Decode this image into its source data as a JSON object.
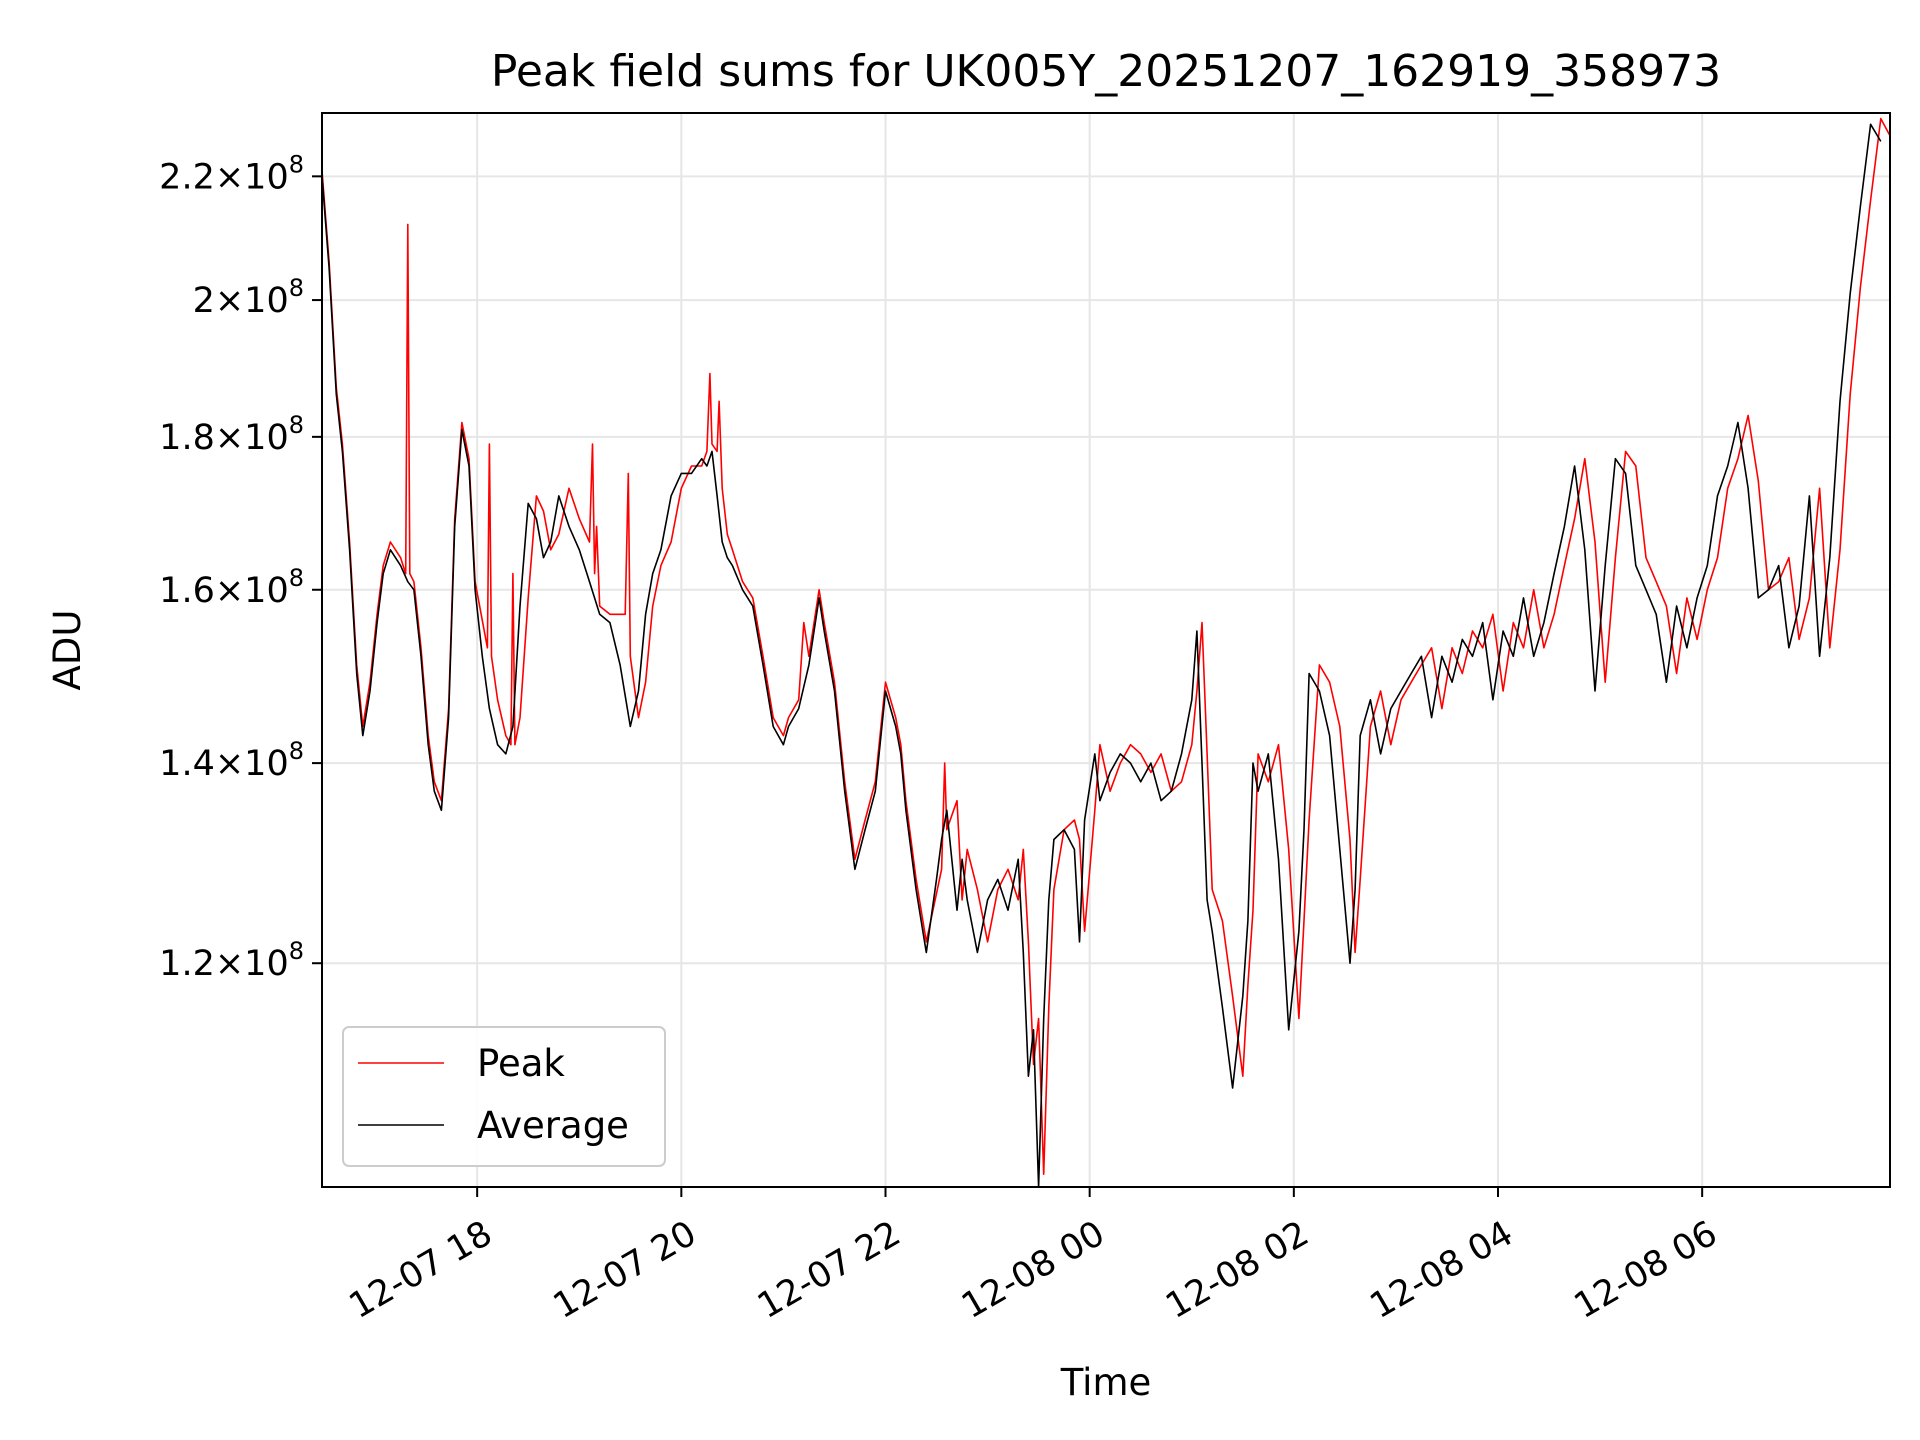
{
  "chart_data": {
    "type": "line",
    "title": "Peak field sums for UK005Y_20251207_162919_358973",
    "xlabel": "Time",
    "ylabel": "ADU",
    "y_scale": "log",
    "xlim_hours": [
      16.48,
      31.84
    ],
    "ylim": [
      101000000,
      231000000
    ],
    "grid": true,
    "x_ticks": [
      {
        "label": "12-07 18",
        "hour": 18
      },
      {
        "label": "12-07 20",
        "hour": 20
      },
      {
        "label": "12-07 22",
        "hour": 22
      },
      {
        "label": "12-08 00",
        "hour": 24
      },
      {
        "label": "12-08 02",
        "hour": 26
      },
      {
        "label": "12-08 04",
        "hour": 28
      },
      {
        "label": "12-08 06",
        "hour": 30
      }
    ],
    "y_ticks": [
      {
        "mantissa": "1.2",
        "exp": "8",
        "value": 120000000
      },
      {
        "mantissa": "1.4",
        "exp": "8",
        "value": 140000000
      },
      {
        "mantissa": "1.6",
        "exp": "8",
        "value": 160000000
      },
      {
        "mantissa": "1.8",
        "exp": "8",
        "value": 180000000
      },
      {
        "mantissa": "2",
        "exp": "8",
        "value": 200000000
      },
      {
        "mantissa": "2.2",
        "exp": "8",
        "value": 220000000
      }
    ],
    "legend": {
      "position": "lower-left",
      "entries": [
        "Peak",
        "Average"
      ]
    },
    "series": [
      {
        "name": "Average",
        "color": "#000000",
        "t_hours": [
          16.48,
          16.55,
          16.62,
          16.68,
          16.75,
          16.82,
          16.88,
          16.95,
          17.02,
          17.08,
          17.15,
          17.25,
          17.32,
          17.38,
          17.45,
          17.52,
          17.58,
          17.65,
          17.72,
          17.78,
          17.85,
          17.92,
          17.98,
          18.05,
          18.12,
          18.2,
          18.28,
          18.35,
          18.42,
          18.5,
          18.58,
          18.65,
          18.72,
          18.8,
          18.9,
          19.0,
          19.1,
          19.2,
          19.3,
          19.4,
          19.5,
          19.58,
          19.65,
          19.72,
          19.8,
          19.9,
          20.0,
          20.1,
          20.2,
          20.25,
          20.3,
          20.35,
          20.4,
          20.45,
          20.5,
          20.6,
          20.7,
          20.8,
          20.9,
          21.0,
          21.05,
          21.15,
          21.25,
          21.35,
          21.4,
          21.5,
          21.6,
          21.7,
          21.8,
          21.9,
          22.0,
          22.1,
          22.15,
          22.2,
          22.3,
          22.4,
          22.5,
          22.55,
          22.6,
          22.7,
          22.75,
          22.8,
          22.9,
          23.0,
          23.1,
          23.2,
          23.3,
          23.35,
          23.4,
          23.45,
          23.5,
          23.55,
          23.6,
          23.65,
          23.75,
          23.85,
          23.9,
          23.95,
          24.05,
          24.1,
          24.2,
          24.3,
          24.4,
          24.5,
          24.6,
          24.7,
          24.8,
          24.9,
          25.0,
          25.05,
          25.1,
          25.15,
          25.2,
          25.3,
          25.4,
          25.5,
          25.55,
          25.6,
          25.65,
          25.75,
          25.85,
          25.95,
          26.05,
          26.1,
          26.15,
          26.25,
          26.35,
          26.45,
          26.55,
          26.6,
          26.65,
          26.75,
          26.85,
          26.95,
          27.05,
          27.15,
          27.25,
          27.35,
          27.45,
          27.55,
          27.65,
          27.75,
          27.85,
          27.95,
          28.05,
          28.15,
          28.25,
          28.35,
          28.45,
          28.55,
          28.65,
          28.75,
          28.85,
          28.95,
          29.05,
          29.15,
          29.25,
          29.35,
          29.45,
          29.55,
          29.65,
          29.75,
          29.85,
          29.95,
          30.05,
          30.15,
          30.25,
          30.35,
          30.45,
          30.55,
          30.65,
          30.75,
          30.85,
          30.95,
          31.05,
          31.15,
          31.25,
          31.35,
          31.45,
          31.55,
          31.65,
          31.75,
          31.84
        ],
        "values": [
          220000000,
          205000000,
          186000000,
          178000000,
          165000000,
          150000000,
          143000000,
          148000000,
          156000000,
          162000000,
          165000000,
          163000000,
          161000000,
          160000000,
          152000000,
          142000000,
          137000000,
          135000000,
          145000000,
          168000000,
          181000000,
          176000000,
          160000000,
          152000000,
          146000000,
          142000000,
          141000000,
          144000000,
          158000000,
          171000000,
          169000000,
          164000000,
          166000000,
          172000000,
          168000000,
          165000000,
          161000000,
          157000000,
          156000000,
          151000000,
          144000000,
          148000000,
          157000000,
          162000000,
          165000000,
          172000000,
          175000000,
          175000000,
          177000000,
          176000000,
          178000000,
          172000000,
          166000000,
          164000000,
          163000000,
          160000000,
          158000000,
          151000000,
          144000000,
          142000000,
          144000000,
          146000000,
          151000000,
          159000000,
          155000000,
          148000000,
          137000000,
          129000000,
          133000000,
          137000000,
          148000000,
          144000000,
          141000000,
          135000000,
          127000000,
          121000000,
          128000000,
          132000000,
          135000000,
          125000000,
          130000000,
          126000000,
          121000000,
          126000000,
          128000000,
          125000000,
          130000000,
          121000000,
          110000000,
          114000000,
          101000000,
          115000000,
          126000000,
          132000000,
          133000000,
          131000000,
          122000000,
          134000000,
          141000000,
          136000000,
          139000000,
          141000000,
          140000000,
          138000000,
          140000000,
          136000000,
          137000000,
          141000000,
          147000000,
          155000000,
          140000000,
          126000000,
          123000000,
          116000000,
          109000000,
          117000000,
          124000000,
          140000000,
          137000000,
          141000000,
          130000000,
          114000000,
          123000000,
          133000000,
          150000000,
          148000000,
          143000000,
          131000000,
          120000000,
          127000000,
          143000000,
          147000000,
          141000000,
          146000000,
          148000000,
          150000000,
          152000000,
          145000000,
          152000000,
          149000000,
          154000000,
          152000000,
          156000000,
          147000000,
          155000000,
          152000000,
          159000000,
          152000000,
          156000000,
          162000000,
          168000000,
          176000000,
          165000000,
          148000000,
          163000000,
          177000000,
          175000000,
          163000000,
          160000000,
          157000000,
          149000000,
          158000000,
          153000000,
          159000000,
          163000000,
          172000000,
          176000000,
          182000000,
          173000000,
          159000000,
          160000000,
          163000000,
          153000000,
          158000000,
          172000000,
          152000000,
          164000000,
          185000000,
          201000000,
          215000000,
          229000000,
          226000000
        ]
      },
      {
        "name": "Peak",
        "color": "#ff0000",
        "t_hours": [
          16.48,
          16.55,
          16.62,
          16.68,
          16.75,
          16.82,
          16.88,
          16.95,
          17.02,
          17.08,
          17.15,
          17.25,
          17.3,
          17.32,
          17.34,
          17.38,
          17.45,
          17.52,
          17.58,
          17.65,
          17.72,
          17.78,
          17.85,
          17.92,
          17.98,
          18.1,
          18.12,
          18.14,
          18.2,
          18.28,
          18.33,
          18.35,
          18.37,
          18.42,
          18.5,
          18.58,
          18.65,
          18.72,
          18.8,
          18.9,
          19.0,
          19.1,
          19.13,
          19.15,
          19.17,
          19.2,
          19.3,
          19.45,
          19.48,
          19.5,
          19.58,
          19.65,
          19.72,
          19.8,
          19.9,
          20.0,
          20.1,
          20.2,
          20.25,
          20.28,
          20.3,
          20.35,
          20.37,
          20.4,
          20.45,
          20.5,
          20.6,
          20.7,
          20.8,
          20.9,
          21.0,
          21.05,
          21.15,
          21.2,
          21.25,
          21.35,
          21.4,
          21.5,
          21.6,
          21.7,
          21.8,
          21.9,
          22.0,
          22.1,
          22.15,
          22.2,
          22.3,
          22.4,
          22.55,
          22.58,
          22.6,
          22.7,
          22.75,
          22.8,
          22.9,
          23.0,
          23.1,
          23.2,
          23.3,
          23.35,
          23.4,
          23.45,
          23.5,
          23.55,
          23.6,
          23.65,
          23.75,
          23.85,
          23.9,
          23.95,
          24.05,
          24.1,
          24.2,
          24.3,
          24.4,
          24.5,
          24.6,
          24.7,
          24.8,
          24.9,
          25.0,
          25.05,
          25.1,
          25.15,
          25.2,
          25.3,
          25.4,
          25.5,
          25.55,
          25.6,
          25.65,
          25.75,
          25.85,
          25.95,
          26.05,
          26.1,
          26.15,
          26.25,
          26.35,
          26.45,
          26.55,
          26.6,
          26.65,
          26.75,
          26.85,
          26.95,
          27.05,
          27.15,
          27.25,
          27.35,
          27.45,
          27.55,
          27.65,
          27.75,
          27.85,
          27.95,
          28.05,
          28.15,
          28.25,
          28.35,
          28.45,
          28.55,
          28.65,
          28.75,
          28.85,
          28.95,
          29.05,
          29.15,
          29.25,
          29.35,
          29.45,
          29.55,
          29.65,
          29.75,
          29.85,
          29.95,
          30.05,
          30.15,
          30.25,
          30.35,
          30.45,
          30.55,
          30.65,
          30.75,
          30.85,
          30.95,
          31.05,
          31.15,
          31.25,
          31.35,
          31.45,
          31.55,
          31.65,
          31.75,
          31.84
        ],
        "values": [
          221000000,
          206000000,
          187000000,
          179000000,
          166000000,
          151000000,
          144000000,
          149000000,
          157000000,
          163000000,
          166000000,
          164000000,
          162000000,
          212000000,
          162000000,
          161000000,
          153000000,
          143000000,
          138000000,
          136000000,
          146000000,
          169000000,
          182000000,
          177000000,
          161000000,
          153000000,
          179000000,
          152000000,
          147000000,
          143000000,
          142000000,
          162000000,
          142000000,
          145000000,
          159000000,
          172000000,
          170000000,
          165000000,
          167000000,
          173000000,
          169000000,
          166000000,
          179000000,
          162000000,
          168000000,
          158000000,
          157000000,
          157000000,
          175000000,
          152000000,
          145000000,
          149000000,
          158000000,
          163000000,
          166000000,
          173000000,
          176000000,
          176000000,
          178000000,
          189000000,
          179000000,
          178000000,
          185000000,
          173000000,
          167000000,
          165000000,
          161000000,
          159000000,
          152000000,
          145000000,
          143000000,
          145000000,
          147000000,
          156000000,
          152000000,
          160000000,
          156000000,
          149000000,
          138000000,
          130000000,
          134000000,
          138000000,
          149000000,
          145000000,
          142000000,
          136000000,
          128000000,
          122000000,
          129000000,
          140000000,
          133000000,
          136000000,
          126000000,
          131000000,
          127000000,
          122000000,
          127000000,
          129000000,
          126000000,
          131000000,
          122000000,
          111000000,
          115000000,
          102000000,
          116000000,
          127000000,
          133000000,
          134000000,
          132000000,
          123000000,
          135000000,
          142000000,
          137000000,
          140000000,
          142000000,
          141000000,
          139000000,
          141000000,
          137000000,
          138000000,
          142000000,
          148000000,
          156000000,
          141000000,
          127000000,
          124000000,
          117000000,
          110000000,
          118000000,
          125000000,
          141000000,
          138000000,
          142000000,
          131000000,
          115000000,
          124000000,
          134000000,
          151000000,
          149000000,
          144000000,
          132000000,
          121000000,
          128000000,
          144000000,
          148000000,
          142000000,
          147000000,
          149000000,
          151000000,
          153000000,
          146000000,
          153000000,
          150000000,
          155000000,
          153000000,
          157000000,
          148000000,
          156000000,
          153000000,
          160000000,
          153000000,
          157000000,
          163000000,
          169000000,
          177000000,
          166000000,
          149000000,
          164000000,
          178000000,
          176000000,
          164000000,
          161000000,
          158000000,
          150000000,
          159000000,
          154000000,
          160000000,
          164000000,
          173000000,
          177000000,
          183000000,
          174000000,
          160000000,
          161000000,
          164000000,
          154000000,
          159000000,
          173000000,
          153000000,
          165000000,
          186000000,
          202000000,
          216000000,
          230000000,
          227000000
        ]
      }
    ]
  }
}
